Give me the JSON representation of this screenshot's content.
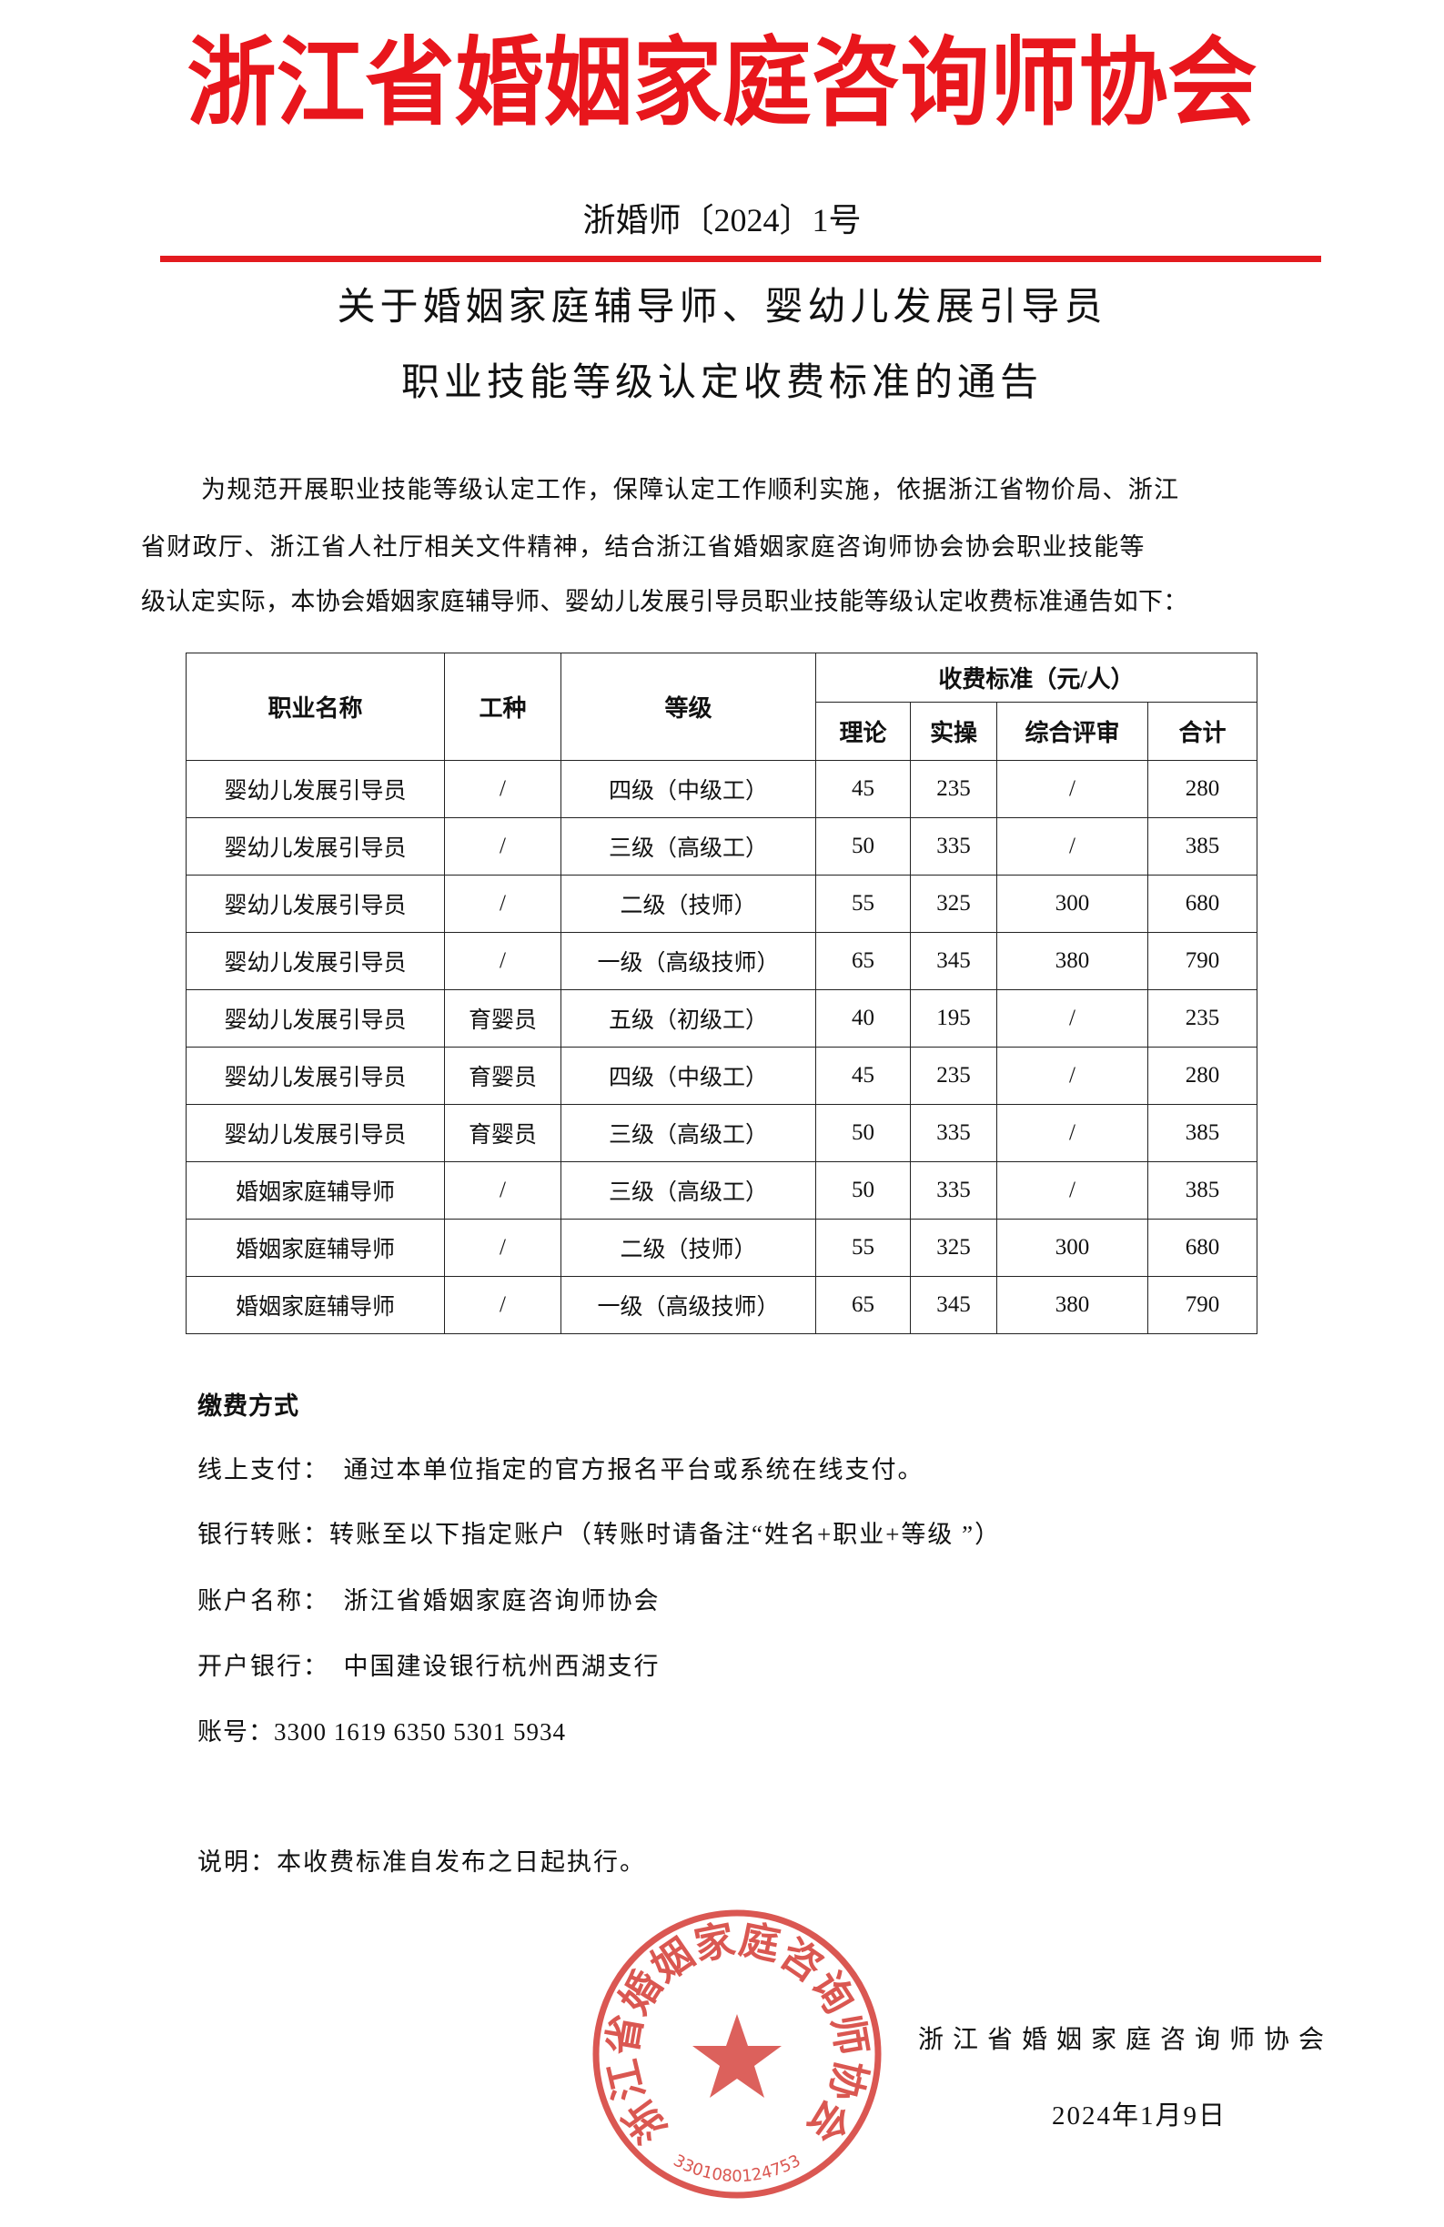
{
  "header": {
    "org_name": "浙江省婚姻家庭咨询师协会",
    "doc_number": "浙婚师〔2024〕1号",
    "brand_color": "#e8161c"
  },
  "title": {
    "line1": "关于婚姻家庭辅导师、婴幼儿发展引导员",
    "line2": "职业技能等级认定收费标准的通告"
  },
  "intro": {
    "line1": "为规范开展职业技能等级认定工作，保障认定工作顺利实施，依据浙江省物价局、浙江",
    "line2": "省财政厅、浙江省人社厅相关文件精神，结合浙江省婚姻家庭咨询师协会协会职业技能等",
    "line3": "级认定实际，本协会婚姻家庭辅导师、婴幼儿发展引导员职业技能等级认定收费标准通告如下："
  },
  "table": {
    "headers": {
      "occupation": "职业名称",
      "type": "工种",
      "level": "等级",
      "fee_group": "收费标准（元/人）",
      "theory": "理论",
      "practice": "实操",
      "review": "综合评审",
      "total": "合计"
    },
    "rows": [
      [
        "婴幼儿发展引导员",
        "/",
        "四级（中级工）",
        "45",
        "235",
        "/",
        "280"
      ],
      [
        "婴幼儿发展引导员",
        "/",
        "三级（高级工）",
        "50",
        "335",
        "/",
        "385"
      ],
      [
        "婴幼儿发展引导员",
        "/",
        "二级（技师）",
        "55",
        "325",
        "300",
        "680"
      ],
      [
        "婴幼儿发展引导员",
        "/",
        "一级（高级技师）",
        "65",
        "345",
        "380",
        "790"
      ],
      [
        "婴幼儿发展引导员",
        "育婴员",
        "五级（初级工）",
        "40",
        "195",
        "/",
        "235"
      ],
      [
        "婴幼儿发展引导员",
        "育婴员",
        "四级（中级工）",
        "45",
        "235",
        "/",
        "280"
      ],
      [
        "婴幼儿发展引导员",
        "育婴员",
        "三级（高级工）",
        "50",
        "335",
        "/",
        "385"
      ],
      [
        "婚姻家庭辅导师",
        "/",
        "三级（高级工）",
        "50",
        "335",
        "/",
        "385"
      ],
      [
        "婚姻家庭辅导师",
        "/",
        "二级（技师）",
        "55",
        "325",
        "300",
        "680"
      ],
      [
        "婚姻家庭辅导师",
        "/",
        "一级（高级技师）",
        "65",
        "345",
        "380",
        "790"
      ]
    ]
  },
  "payment": {
    "heading": "缴费方式",
    "online": "线上支付：　通过本单位指定的官方报名平台或系统在线支付。",
    "bank_transfer": "银行转账：转账至以下指定账户（转账时请备注“姓名+职业+等级 ”）",
    "account_name": "账户名称：　浙江省婚姻家庭咨询师协会",
    "bank": "开户银行：　中国建设银行杭州西湖支行",
    "account_no": "账号：3300 1619 6350 5301 5934"
  },
  "note": "说明：本收费标准自发布之日起执行。",
  "signature": {
    "org": "浙江省婚姻家庭咨询师协会",
    "date": "2024年1月9日"
  },
  "seal": {
    "text": "浙江省婚姻家庭咨询师协会",
    "code": "3301080124753",
    "color": "#d6453f"
  }
}
